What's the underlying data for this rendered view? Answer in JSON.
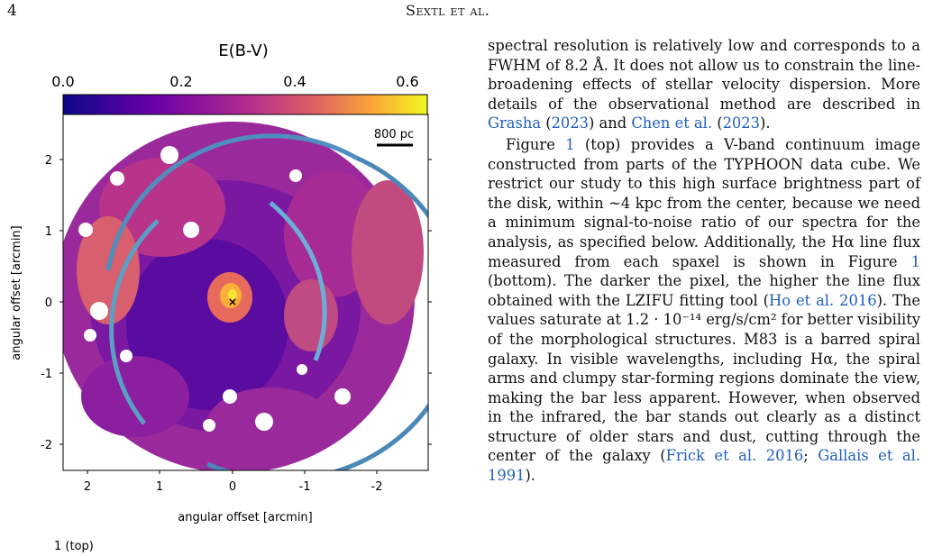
{
  "header": {
    "page_number": "4",
    "authors": "Sextl et al."
  },
  "figure": {
    "colorbar_label": "E(B-V)",
    "colorbar_ticks": [
      "0.0",
      "0.2",
      "0.4",
      "0.6"
    ],
    "scalebar_label": "800 pc",
    "ylabel": "angular offset [arcmin]",
    "xlabel": "angular offset [arcmin]",
    "yticks": [
      "2",
      "1",
      "0",
      "-1",
      "-2"
    ],
    "xticks": [
      "2",
      "1",
      "0",
      "-1",
      "-2"
    ],
    "caption_fragment": "1  (top)"
  },
  "text": {
    "p1_a": "spectral resolution is relatively low and corresponds to a FWHM of 8.2 Å. It does not allow us to constrain the line-broadening effects of stellar velocity dispersion. More details of the observational method are described in ",
    "ref_grasha": "Grasha",
    "ref_grasha_year": "2023",
    "p1_and": ") and ",
    "ref_chen": "Chen et al.",
    "ref_chen_year": "2023",
    "p1_end": ").",
    "p2_a": "Figure ",
    "fig_num_1": "1",
    "p2_b": " (top) provides a V-band continuum image constructed from parts of the TYPHOON data cube. We restrict our study to this high surface brightness part of the disk, within ~4 kpc from the center, because we need a minimum signal-to-noise ratio of our spectra for the analysis, as specified below. Additionally, the Hα line flux measured from each spaxel is shown in Figure ",
    "fig_num_2": "1",
    "p2_c": " (bottom). The darker the pixel, the higher the line flux obtained with the LZIFU fitting tool (",
    "ref_ho": "Ho et al. 2016",
    "p2_d": "). The values saturate at 1.2 · 10⁻¹⁴ erg/s/cm² for better visibility of the morphological structures. M83 is a barred spiral galaxy. In visible wavelengths, including Hα, the spiral arms and clumpy star-forming regions dominate the view, making the bar less apparent. However, when observed in the infrared, the bar stands out clearly as a distinct structure of older stars and dust, cutting through the center of the galaxy (",
    "ref_frick": "Frick et al. 2016",
    "p2_sep": "; ",
    "ref_gallais": "Gallais et al. 1991",
    "p2_end": ")."
  }
}
